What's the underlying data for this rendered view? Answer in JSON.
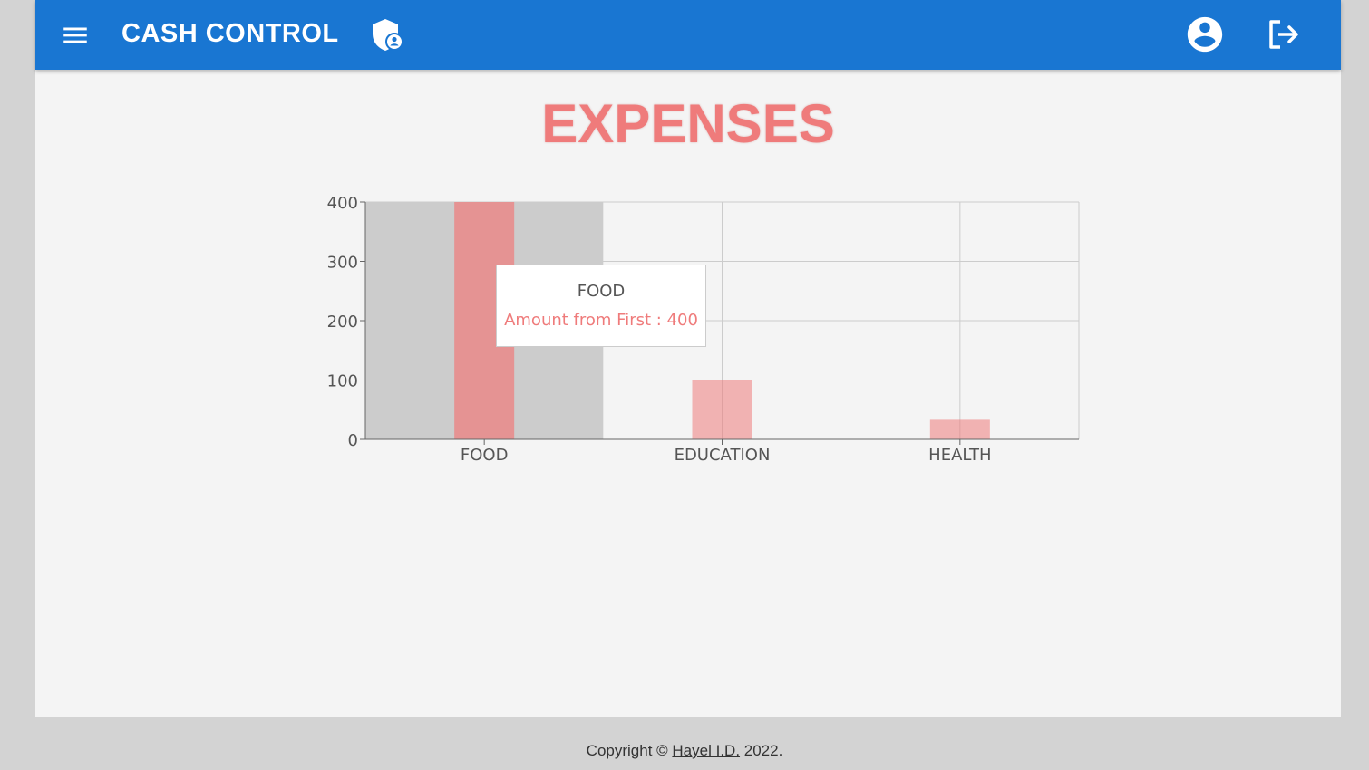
{
  "header": {
    "title": "CASH CONTROL",
    "icons": {
      "menu": "menu-icon",
      "brand": "admin-shield-icon",
      "account": "account-circle-icon",
      "logout": "logout-icon"
    }
  },
  "page": {
    "heading": "EXPENSES"
  },
  "chart_data": {
    "type": "bar",
    "categories": [
      "FOOD",
      "EDUCATION",
      "HEALTH"
    ],
    "series": [
      {
        "name": "Amount from First",
        "values": [
          400,
          100,
          33
        ]
      }
    ],
    "ylim": [
      0,
      400
    ],
    "yticks": [
      0,
      100,
      200,
      300,
      400
    ],
    "grid": true,
    "color": "#ef7b7b",
    "highlight_color": "#cccccc",
    "active_category": "FOOD"
  },
  "tooltip": {
    "label": "FOOD",
    "series_name": "Amount from First",
    "value": "400"
  },
  "footer": {
    "prefix": "Copyright © ",
    "author": "Hayel I.D.",
    "suffix": " 2022."
  }
}
